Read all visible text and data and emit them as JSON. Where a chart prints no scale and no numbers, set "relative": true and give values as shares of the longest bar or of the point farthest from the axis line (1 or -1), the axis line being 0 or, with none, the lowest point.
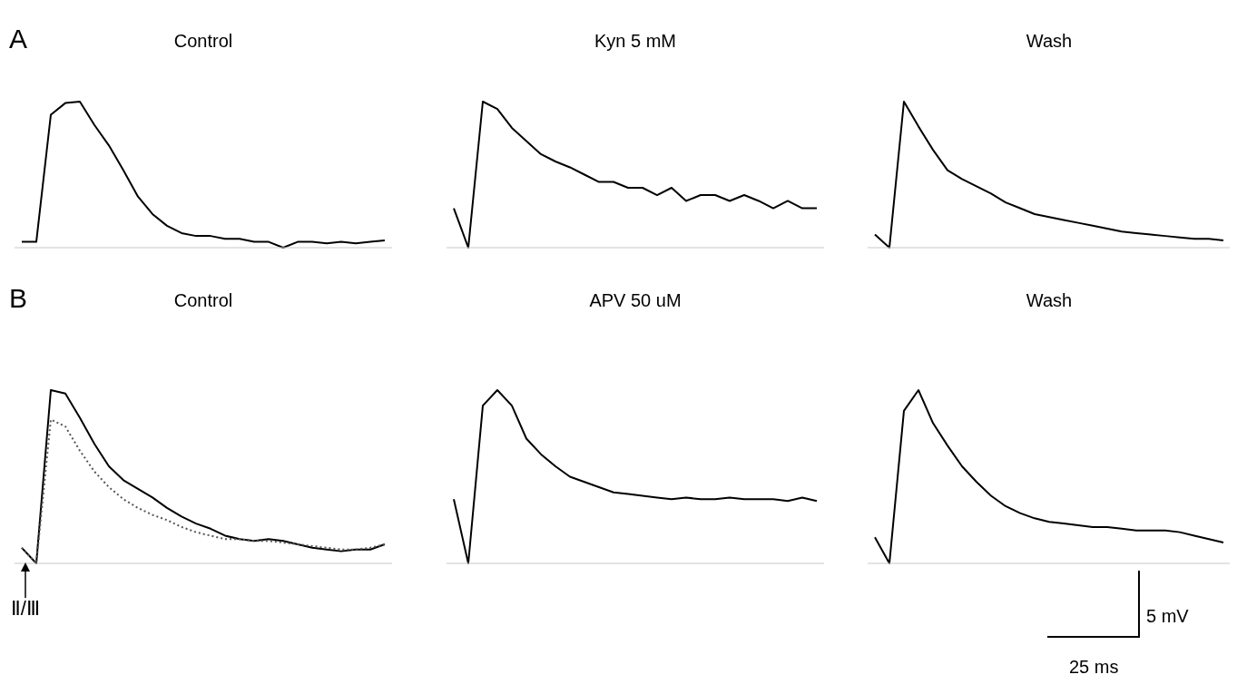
{
  "chart_data": [
    {
      "type": "line",
      "title": "Control",
      "relative": true,
      "annotations": [
        "A"
      ],
      "categories": [
        null,
        null,
        null,
        null,
        null,
        null,
        null,
        null,
        null,
        null,
        null,
        null,
        null,
        null,
        null,
        null,
        null,
        null,
        null,
        null,
        null,
        null,
        null,
        null,
        null,
        null
      ],
      "series": [
        {
          "color": "#000000",
          "values": [
            0.04,
            0.04,
            0.91,
            0.99,
            1.0,
            0.84,
            0.7,
            0.53,
            0.35,
            0.23,
            0.15,
            0.1,
            0.08,
            0.08,
            0.06,
            0.06,
            0.04,
            0.04,
            0.0,
            0.04,
            0.04,
            0.03,
            0.04,
            0.03,
            0.04,
            0.05
          ]
        }
      ]
    },
    {
      "type": "line",
      "title": "Kyn 5 mM",
      "relative": true,
      "categories": [
        null,
        null,
        null,
        null,
        null,
        null,
        null,
        null,
        null,
        null,
        null,
        null,
        null,
        null,
        null,
        null,
        null,
        null,
        null,
        null,
        null,
        null,
        null,
        null,
        null,
        null
      ],
      "series": [
        {
          "color": "#000000",
          "values": [
            0.27,
            0.0,
            1.0,
            0.95,
            0.82,
            0.73,
            0.64,
            0.59,
            0.55,
            0.5,
            0.45,
            0.45,
            0.41,
            0.41,
            0.36,
            0.41,
            0.32,
            0.36,
            0.36,
            0.32,
            0.36,
            0.32,
            0.27,
            0.32,
            0.27,
            0.27
          ]
        }
      ]
    },
    {
      "type": "line",
      "title": "Wash",
      "relative": true,
      "categories": [
        null,
        null,
        null,
        null,
        null,
        null,
        null,
        null,
        null,
        null,
        null,
        null,
        null,
        null,
        null,
        null,
        null,
        null,
        null,
        null,
        null,
        null,
        null,
        null,
        null
      ],
      "series": [
        {
          "color": "#000000",
          "values": [
            0.09,
            0.0,
            1.0,
            0.83,
            0.67,
            0.53,
            0.47,
            0.42,
            0.37,
            0.31,
            0.27,
            0.23,
            0.21,
            0.19,
            0.17,
            0.15,
            0.13,
            0.11,
            0.1,
            0.09,
            0.08,
            0.07,
            0.06,
            0.06,
            0.05
          ]
        }
      ]
    },
    {
      "type": "line",
      "title": "Control",
      "relative": true,
      "annotations": [
        "B",
        "Ⅱ/Ⅲ"
      ],
      "categories": [
        null,
        null,
        null,
        null,
        null,
        null,
        null,
        null,
        null,
        null,
        null,
        null,
        null,
        null,
        null,
        null,
        null,
        null,
        null,
        null,
        null,
        null,
        null,
        null,
        null,
        null
      ],
      "series": [
        {
          "color": "#000000",
          "values": [
            0.09,
            0.0,
            1.0,
            0.98,
            0.84,
            0.69,
            0.56,
            0.48,
            0.43,
            0.38,
            0.32,
            0.27,
            0.23,
            0.2,
            0.16,
            0.14,
            0.13,
            0.14,
            0.13,
            0.11,
            0.09,
            0.08,
            0.07,
            0.08,
            0.08,
            0.11
          ]
        },
        {
          "color": "#555555",
          "line_style": "dotted",
          "values": [
            0.09,
            0.0,
            0.83,
            0.79,
            0.65,
            0.53,
            0.44,
            0.37,
            0.32,
            0.28,
            0.25,
            0.21,
            0.18,
            0.16,
            0.14,
            0.14,
            0.13,
            0.13,
            0.12,
            0.11,
            0.1,
            0.09,
            0.08,
            0.08,
            0.09,
            0.11
          ]
        }
      ]
    },
    {
      "type": "line",
      "title": "APV 50 uM",
      "relative": true,
      "categories": [
        null,
        null,
        null,
        null,
        null,
        null,
        null,
        null,
        null,
        null,
        null,
        null,
        null,
        null,
        null,
        null,
        null,
        null,
        null,
        null,
        null,
        null,
        null,
        null,
        null,
        null
      ],
      "series": [
        {
          "color": "#000000",
          "values": [
            0.37,
            0.0,
            0.91,
            1.0,
            0.91,
            0.72,
            0.63,
            0.56,
            0.5,
            0.47,
            0.44,
            0.41,
            0.4,
            0.39,
            0.38,
            0.37,
            0.38,
            0.37,
            0.37,
            0.38,
            0.37,
            0.37,
            0.37,
            0.36,
            0.38,
            0.36
          ]
        }
      ]
    },
    {
      "type": "line",
      "title": "Wash",
      "relative": true,
      "annotations": [
        "5 mV",
        "25 ms"
      ],
      "categories": [
        null,
        null,
        null,
        null,
        null,
        null,
        null,
        null,
        null,
        null,
        null,
        null,
        null,
        null,
        null,
        null,
        null,
        null,
        null,
        null,
        null,
        null,
        null,
        null,
        null
      ],
      "series": [
        {
          "color": "#000000",
          "values": [
            0.15,
            0.0,
            0.88,
            1.0,
            0.81,
            0.68,
            0.56,
            0.47,
            0.39,
            0.33,
            0.29,
            0.26,
            0.24,
            0.23,
            0.22,
            0.21,
            0.21,
            0.2,
            0.19,
            0.19,
            0.19,
            0.18,
            0.16,
            0.14,
            0.12
          ]
        }
      ]
    }
  ]
}
